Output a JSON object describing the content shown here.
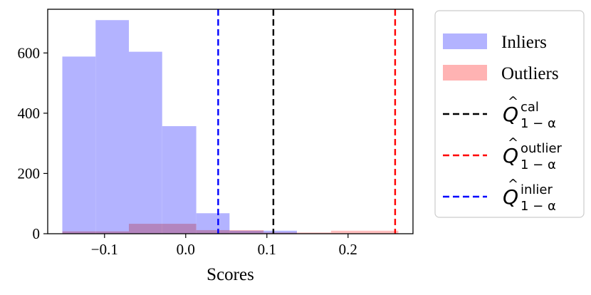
{
  "chart_data": {
    "type": "bar",
    "xlabel": "Scores",
    "ylabel": "",
    "xlim": [
      -0.17,
      0.28
    ],
    "ylim": [
      0,
      745
    ],
    "xticks": [
      -0.1,
      0.0,
      0.1,
      0.2
    ],
    "xtick_labels": [
      "−0.1",
      "0.0",
      "0.1",
      "0.2"
    ],
    "yticks": [
      0,
      200,
      400,
      600
    ],
    "ytick_labels": [
      "0",
      "200",
      "400",
      "600"
    ],
    "grid": false,
    "legend_position": "outside-right",
    "series": [
      {
        "name": "Inliers",
        "kind": "histogram",
        "color": "#b3b3ff",
        "bins": [
          {
            "x0": -0.152,
            "x1": -0.111,
            "count": 588
          },
          {
            "x0": -0.111,
            "x1": -0.07,
            "count": 709
          },
          {
            "x0": -0.07,
            "x1": -0.029,
            "count": 604
          },
          {
            "x0": -0.029,
            "x1": 0.013,
            "count": 357
          },
          {
            "x0": 0.013,
            "x1": 0.054,
            "count": 68
          },
          {
            "x0": 0.054,
            "x1": 0.095,
            "count": 10
          },
          {
            "x0": 0.095,
            "x1": 0.137,
            "count": 10
          }
        ]
      },
      {
        "name": "Outliers",
        "kind": "histogram",
        "color": "#ffb3b3",
        "bins": [
          {
            "x0": -0.152,
            "x1": -0.07,
            "count": 8
          },
          {
            "x0": -0.07,
            "x1": 0.013,
            "count": 33
          },
          {
            "x0": 0.013,
            "x1": 0.096,
            "count": 12
          },
          {
            "x0": 0.096,
            "x1": 0.179,
            "count": 4
          },
          {
            "x0": 0.179,
            "x1": 0.262,
            "count": 10
          }
        ]
      }
    ],
    "vlines": [
      {
        "id": "cal",
        "x": 0.108,
        "color": "#000000",
        "label": "Ô",
        "sub": "1−α",
        "sup": "cal"
      },
      {
        "id": "outlier",
        "x": 0.258,
        "color": "#ff0000",
        "label": "Ô",
        "sub": "1−α",
        "sup": "outlier"
      },
      {
        "id": "inlier",
        "x": 0.04,
        "color": "#0000ff",
        "label": "Ô",
        "sub": "1−α",
        "sup": "inlier"
      }
    ],
    "legend_entries": [
      {
        "kind": "patch",
        "color": "#b3b3ff",
        "text": "Inliers"
      },
      {
        "kind": "patch",
        "color": "#ffb3b3",
        "text": "Outliers"
      },
      {
        "kind": "line",
        "color": "#000000",
        "base": "Q",
        "sup": "cal",
        "sub": "1 − α"
      },
      {
        "kind": "line",
        "color": "#ff0000",
        "base": "Q",
        "sup": "outlier",
        "sub": "1 − α"
      },
      {
        "kind": "line",
        "color": "#0000ff",
        "base": "Q",
        "sup": "inlier",
        "sub": "1 − α"
      }
    ]
  }
}
